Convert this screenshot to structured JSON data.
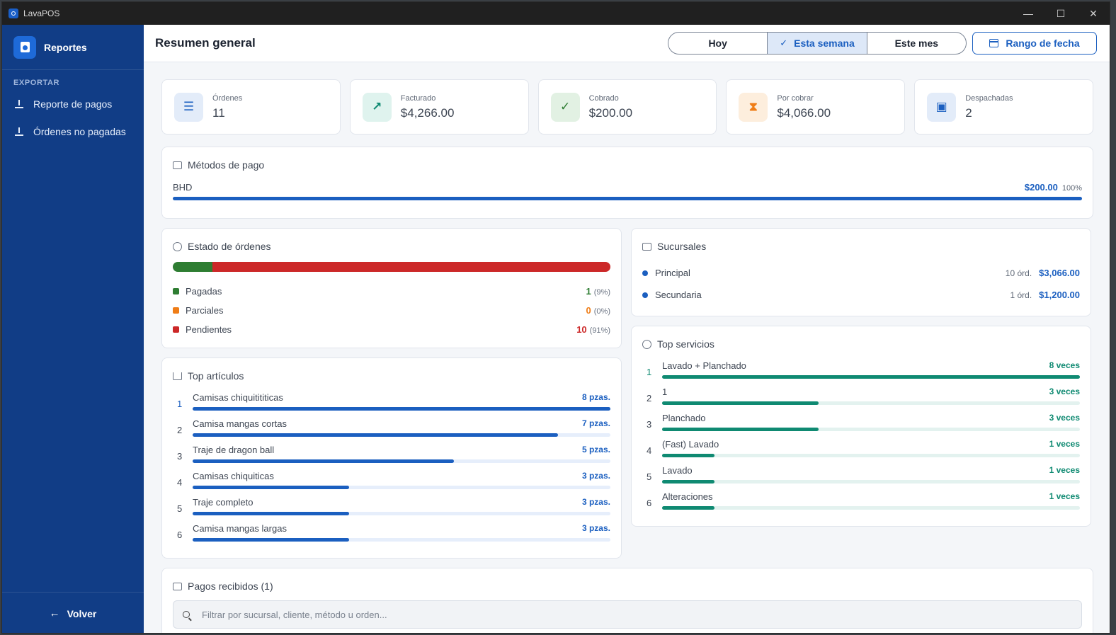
{
  "window": {
    "title": "LavaPOS"
  },
  "sidebar": {
    "brand": "Reportes",
    "section": "EXPORTAR",
    "items": [
      {
        "label": "Reporte de pagos"
      },
      {
        "label": "Órdenes no pagadas"
      }
    ],
    "back": "Volver"
  },
  "header": {
    "title": "Resumen general",
    "periods": [
      "Hoy",
      "Esta semana",
      "Este mes"
    ],
    "active_period": "Esta semana",
    "range_button": "Rango de fecha"
  },
  "stats": [
    {
      "label": "Órdenes",
      "value": "11",
      "icon": "receipt-icon",
      "color": "#1b5fc0",
      "bg": "#e3ecf9"
    },
    {
      "label": "Facturado",
      "value": "$4,266.00",
      "icon": "trending-up-icon",
      "color": "#0f8a72",
      "bg": "#dff3ee"
    },
    {
      "label": "Cobrado",
      "value": "$200.00",
      "icon": "check-circle-icon",
      "color": "#2e7d32",
      "bg": "#e2f1e3"
    },
    {
      "label": "Por cobrar",
      "value": "$4,066.00",
      "icon": "hourglass-icon",
      "color": "#ef7d17",
      "bg": "#fdeedd"
    },
    {
      "label": "Despachadas",
      "value": "2",
      "icon": "truck-icon",
      "color": "#1b5fc0",
      "bg": "#e3ecf9"
    }
  ],
  "payment_methods": {
    "title": "Métodos de pago",
    "items": [
      {
        "name": "BHD",
        "amount": "$200.00",
        "pct": "100%",
        "fraction": 1.0
      }
    ]
  },
  "order_status": {
    "title": "Estado de órdenes",
    "items": [
      {
        "label": "Pagadas",
        "value": "1",
        "pct": "(9%)",
        "fraction": 0.09,
        "color": "#2e7d32"
      },
      {
        "label": "Parciales",
        "value": "0",
        "pct": "(0%)",
        "fraction": 0.0,
        "color": "#ef7d17"
      },
      {
        "label": "Pendientes",
        "value": "10",
        "pct": "(91%)",
        "fraction": 0.91,
        "color": "#cc2828"
      }
    ]
  },
  "branches": {
    "title": "Sucursales",
    "items": [
      {
        "name": "Principal",
        "count": "10 órd.",
        "amount": "$3,066.00"
      },
      {
        "name": "Secundaria",
        "count": "1 órd.",
        "amount": "$1,200.00"
      }
    ]
  },
  "top_articles": {
    "title": "Top artículos",
    "color": "#1b5fc0",
    "track": "#e6eefb",
    "items": [
      {
        "rank": "1",
        "name": "Camisas chiquitititicas",
        "value": "8 pzas.",
        "fraction": 1.0
      },
      {
        "rank": "2",
        "name": "Camisa mangas cortas",
        "value": "7 pzas.",
        "fraction": 0.875
      },
      {
        "rank": "3",
        "name": "Traje de dragon ball",
        "value": "5 pzas.",
        "fraction": 0.625
      },
      {
        "rank": "4",
        "name": "Camisas chiquiticas",
        "value": "3 pzas.",
        "fraction": 0.375
      },
      {
        "rank": "5",
        "name": "Traje completo",
        "value": "3 pzas.",
        "fraction": 0.375
      },
      {
        "rank": "6",
        "name": "Camisa mangas largas",
        "value": "3 pzas.",
        "fraction": 0.375
      }
    ]
  },
  "top_services": {
    "title": "Top servicios",
    "color": "#0f8a72",
    "track": "#e3f2ef",
    "items": [
      {
        "rank": "1",
        "name": "Lavado + Planchado",
        "value": "8 veces",
        "fraction": 1.0
      },
      {
        "rank": "2",
        "name": "1",
        "value": "3 veces",
        "fraction": 0.375
      },
      {
        "rank": "3",
        "name": "Planchado",
        "value": "3 veces",
        "fraction": 0.375
      },
      {
        "rank": "4",
        "name": "(Fast) Lavado",
        "value": "1 veces",
        "fraction": 0.125
      },
      {
        "rank": "5",
        "name": "Lavado",
        "value": "1 veces",
        "fraction": 0.125
      },
      {
        "rank": "6",
        "name": "Alteraciones",
        "value": "1 veces",
        "fraction": 0.125
      }
    ]
  },
  "payments_received": {
    "title": "Pagos recibidos (1)",
    "search_placeholder": "Filtrar por sucursal, cliente, método u orden..."
  }
}
